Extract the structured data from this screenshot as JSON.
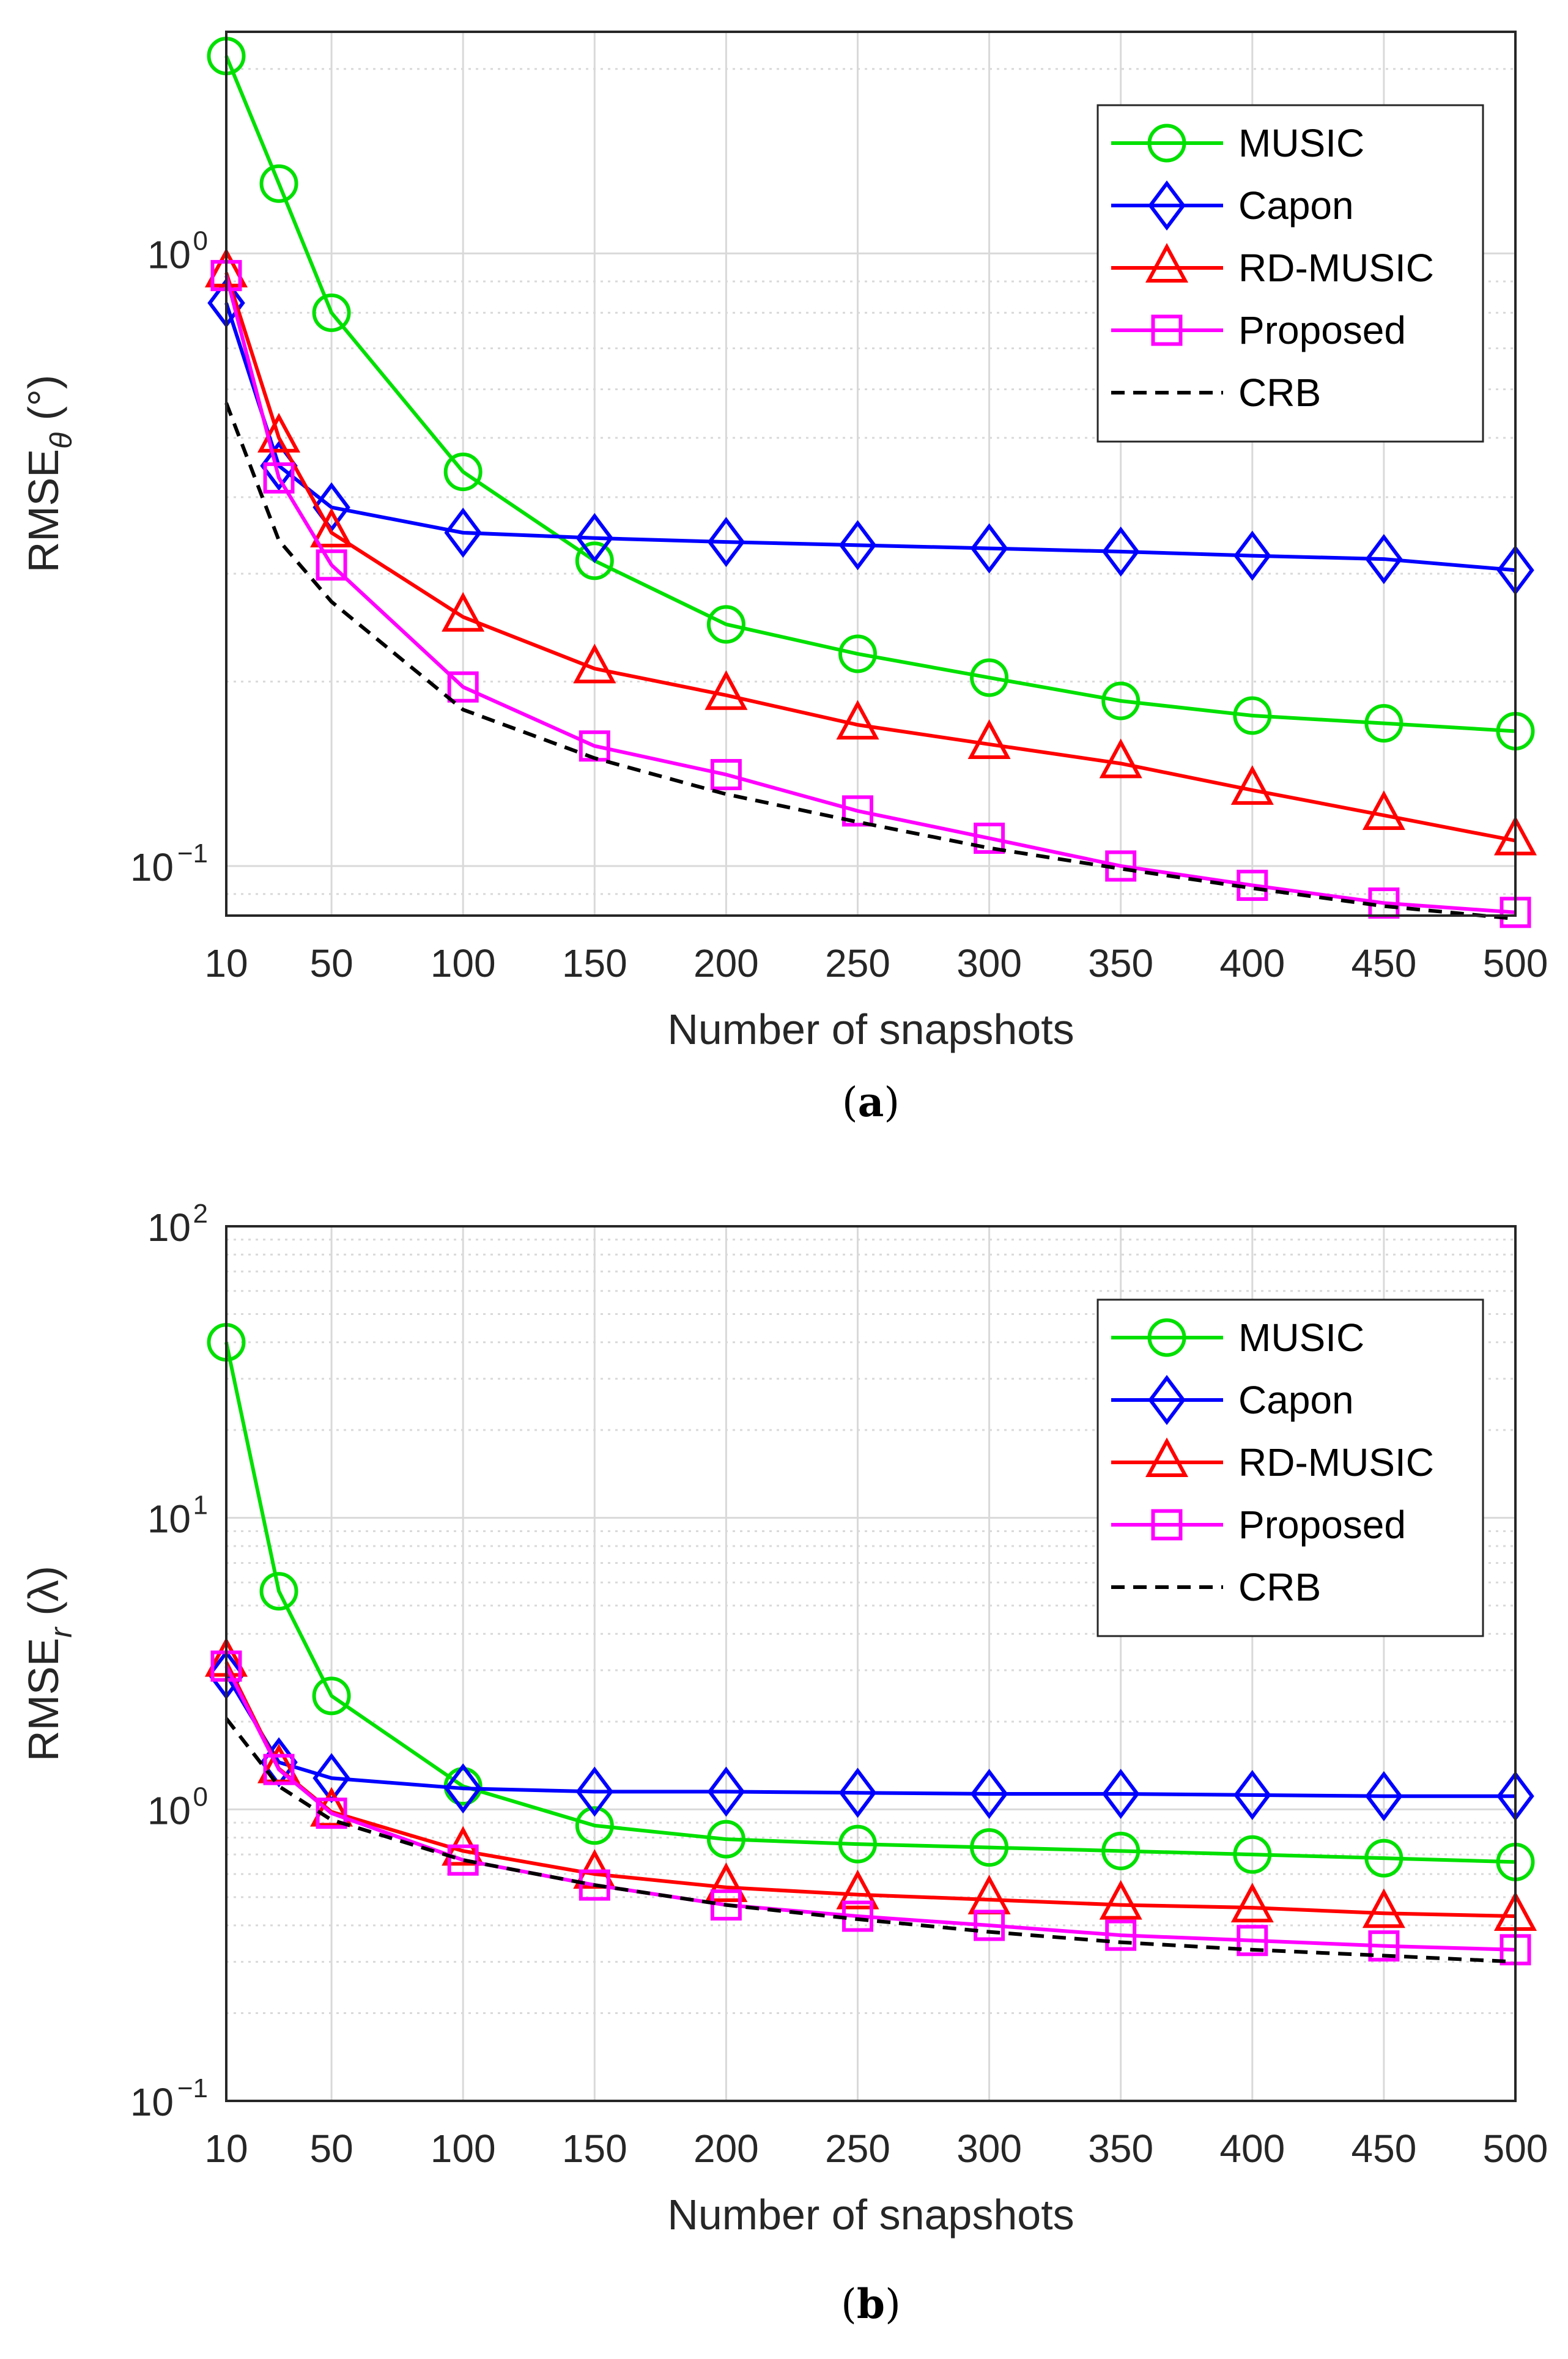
{
  "colors": {
    "MUSIC": "#00e000",
    "Capon": "#0000ff",
    "RD-MUSIC": "#ff0000",
    "Proposed": "#ff00ff",
    "CRB": "#000000",
    "grid": "#d9d9d9",
    "axis": "#262626"
  },
  "chart_data": [
    {
      "type": "line",
      "caption_letter": "a",
      "xlabel": "Number of snapshots",
      "ylabel_main": "RMSE",
      "ylabel_sub": "θ",
      "ylabel_unit": " (°)",
      "yscale": "log",
      "xlim": [
        10,
        500
      ],
      "ylim": [
        0.083,
        2.3
      ],
      "x_ticks": [
        10,
        50,
        100,
        150,
        200,
        250,
        300,
        350,
        400,
        450,
        500
      ],
      "x_tick_labels": [
        "10",
        "50",
        "100",
        "150",
        "200",
        "250",
        "300",
        "350",
        "400",
        "450",
        "500"
      ],
      "y_ticks": [
        {
          "value": 1,
          "base": "10",
          "exp": "0"
        },
        {
          "value": 0.1,
          "base": "10",
          "exp": "−1"
        }
      ],
      "legend_position": "top-right",
      "x": [
        10,
        30,
        50,
        100,
        150,
        200,
        250,
        300,
        350,
        400,
        450,
        500
      ],
      "series": [
        {
          "name": "MUSIC",
          "marker": "circle",
          "dash": false,
          "values": [
            2.1,
            1.3,
            0.8,
            0.44,
            0.315,
            0.248,
            0.222,
            0.203,
            0.186,
            0.176,
            0.171,
            0.166
          ]
        },
        {
          "name": "Capon",
          "marker": "diamond",
          "dash": false,
          "values": [
            0.83,
            0.45,
            0.385,
            0.35,
            0.343,
            0.338,
            0.334,
            0.33,
            0.326,
            0.321,
            0.317,
            0.304
          ]
        },
        {
          "name": "RD-MUSIC",
          "marker": "triangle",
          "dash": false,
          "values": [
            0.93,
            0.5,
            0.35,
            0.255,
            0.21,
            0.19,
            0.17,
            0.158,
            0.147,
            0.133,
            0.121,
            0.11
          ]
        },
        {
          "name": "Proposed",
          "marker": "square",
          "dash": false,
          "values": [
            0.92,
            0.43,
            0.31,
            0.196,
            0.157,
            0.141,
            0.123,
            0.111,
            0.1,
            0.093,
            0.087,
            0.084
          ]
        },
        {
          "name": "CRB",
          "marker": "none",
          "dash": true,
          "values": [
            0.57,
            0.34,
            0.27,
            0.18,
            0.15,
            0.131,
            0.118,
            0.107,
            0.099,
            0.092,
            0.086,
            0.082
          ]
        }
      ]
    },
    {
      "type": "line",
      "caption_letter": "b",
      "xlabel": "Number of snapshots",
      "ylabel_main": "RMSE",
      "ylabel_sub": "r",
      "ylabel_unit": " (λ)",
      "yscale": "log",
      "xlim": [
        10,
        500
      ],
      "ylim": [
        0.1,
        100
      ],
      "x_ticks": [
        10,
        50,
        100,
        150,
        200,
        250,
        300,
        350,
        400,
        450,
        500
      ],
      "x_tick_labels": [
        "10",
        "50",
        "100",
        "150",
        "200",
        "250",
        "300",
        "350",
        "400",
        "450",
        "500"
      ],
      "y_ticks": [
        {
          "value": 100,
          "base": "10",
          "exp": "2"
        },
        {
          "value": 10,
          "base": "10",
          "exp": "1"
        },
        {
          "value": 1,
          "base": "10",
          "exp": "0"
        },
        {
          "value": 0.1,
          "base": "10",
          "exp": "−1"
        }
      ],
      "legend_position": "top-right",
      "x": [
        10,
        30,
        50,
        100,
        150,
        200,
        250,
        300,
        350,
        400,
        450,
        500
      ],
      "series": [
        {
          "name": "MUSIC",
          "marker": "circle",
          "dash": false,
          "values": [
            40,
            5.6,
            2.45,
            1.2,
            0.88,
            0.79,
            0.76,
            0.74,
            0.72,
            0.7,
            0.68,
            0.66
          ]
        },
        {
          "name": "Capon",
          "marker": "diamond",
          "dash": false,
          "values": [
            2.9,
            1.45,
            1.28,
            1.18,
            1.15,
            1.15,
            1.14,
            1.13,
            1.13,
            1.12,
            1.11,
            1.11
          ]
        },
        {
          "name": "RD-MUSIC",
          "marker": "triangle",
          "dash": false,
          "values": [
            3.2,
            1.38,
            0.98,
            0.72,
            0.6,
            0.54,
            0.51,
            0.49,
            0.47,
            0.46,
            0.44,
            0.43
          ]
        },
        {
          "name": "Proposed",
          "marker": "square",
          "dash": false,
          "values": [
            3.1,
            1.37,
            0.97,
            0.67,
            0.55,
            0.47,
            0.43,
            0.4,
            0.37,
            0.355,
            0.34,
            0.33
          ]
        },
        {
          "name": "CRB",
          "marker": "none",
          "dash": true,
          "values": [
            2.05,
            1.2,
            0.92,
            0.67,
            0.55,
            0.47,
            0.42,
            0.38,
            0.35,
            0.33,
            0.315,
            0.3
          ]
        }
      ]
    }
  ]
}
